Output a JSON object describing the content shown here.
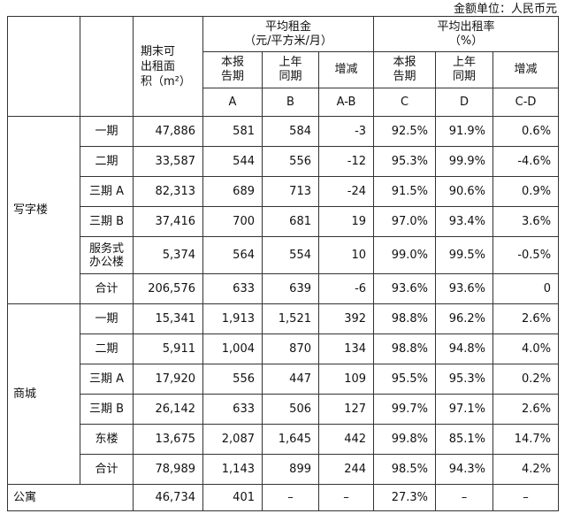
{
  "unit_note": "金额单位：人民币元",
  "header": {
    "area": "期末可出租面积（m²）",
    "area_lines": [
      "期末可",
      "出租面",
      "积（m²）"
    ],
    "avg_rent": "平均租金",
    "avg_rent_unit": "（元/平方米/月）",
    "occupancy": "平均出租率",
    "occupancy_unit": "（%）",
    "current_period": [
      "本报",
      "告期"
    ],
    "prior_period": [
      "上年",
      "同期"
    ],
    "change": "增减",
    "letters": {
      "a": "A",
      "b": "B",
      "ab": "A-B",
      "c": "C",
      "d": "D",
      "cd": "C-D"
    }
  },
  "groups": [
    {
      "name": "写字楼",
      "rows": [
        {
          "label": "一期",
          "area": "47,886",
          "a": "581",
          "b": "584",
          "ab": "-3",
          "c": "92.5%",
          "d": "91.9%",
          "cd": "0.6%"
        },
        {
          "label": "二期",
          "area": "33,587",
          "a": "544",
          "b": "556",
          "ab": "-12",
          "c": "95.3%",
          "d": "99.9%",
          "cd": "-4.6%"
        },
        {
          "label": "三期 A",
          "area": "82,313",
          "a": "689",
          "b": "713",
          "ab": "-24",
          "c": "91.5%",
          "d": "90.6%",
          "cd": "0.9%"
        },
        {
          "label": "三期 B",
          "area": "37,416",
          "a": "700",
          "b": "681",
          "ab": "19",
          "c": "97.0%",
          "d": "93.4%",
          "cd": "3.6%"
        },
        {
          "label": "服务式办公楼",
          "label_lines": [
            "服务式",
            "办公楼"
          ],
          "area": "5,374",
          "a": "564",
          "b": "554",
          "ab": "10",
          "c": "99.0%",
          "d": "99.5%",
          "cd": "-0.5%"
        },
        {
          "label": "合计",
          "area": "206,576",
          "a": "633",
          "b": "639",
          "ab": "-6",
          "c": "93.6%",
          "d": "93.6%",
          "cd": "0"
        }
      ]
    },
    {
      "name": "商城",
      "rows": [
        {
          "label": "一期",
          "area": "15,341",
          "a": "1,913",
          "b": "1,521",
          "ab": "392",
          "c": "98.8%",
          "d": "96.2%",
          "cd": "2.6%"
        },
        {
          "label": "二期",
          "area": "5,911",
          "a": "1,004",
          "b": "870",
          "ab": "134",
          "c": "98.8%",
          "d": "94.8%",
          "cd": "4.0%"
        },
        {
          "label": "三期 A",
          "area": "17,920",
          "a": "556",
          "b": "447",
          "ab": "109",
          "c": "95.5%",
          "d": "95.3%",
          "cd": "0.2%"
        },
        {
          "label": "三期 B",
          "area": "26,142",
          "a": "633",
          "b": "506",
          "ab": "127",
          "c": "99.7%",
          "d": "97.1%",
          "cd": "2.6%"
        },
        {
          "label": "东楼",
          "area": "13,675",
          "a": "2,087",
          "b": "1,645",
          "ab": "442",
          "c": "99.8%",
          "d": "85.1%",
          "cd": "14.7%"
        },
        {
          "label": "合计",
          "area": "78,989",
          "a": "1,143",
          "b": "899",
          "ab": "244",
          "c": "98.5%",
          "d": "94.3%",
          "cd": "4.2%"
        }
      ]
    }
  ],
  "apartment": {
    "label": "公寓",
    "area": "46,734",
    "a": "401",
    "b": "–",
    "ab": "–",
    "c": "27.3%",
    "d": "–",
    "cd": "–"
  }
}
